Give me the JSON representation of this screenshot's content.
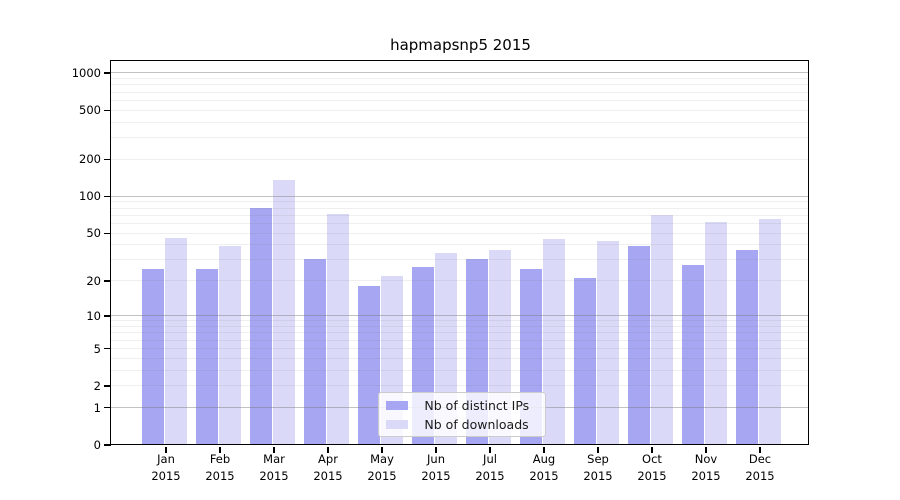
{
  "title": "hapmapsnp5 2015",
  "colors": {
    "ips_bar": "#a6a6f2",
    "downloads_bar": "#dadaf8",
    "grid_major": "rgba(120,120,120,0.45)",
    "grid_minor": "rgba(120,120,120,0.12)",
    "axis": "#000000",
    "legend_border": "#cccccc"
  },
  "legend": {
    "items": [
      {
        "label": "Nb of distinct IPs",
        "color": "#a6a6f2"
      },
      {
        "label": "Nb of downloads",
        "color": "#dadaf8"
      }
    ]
  },
  "chart_data": {
    "type": "bar",
    "title": "hapmapsnp5 2015",
    "categories": [
      "Jan",
      "Feb",
      "Mar",
      "Apr",
      "May",
      "Jun",
      "Jul",
      "Aug",
      "Sep",
      "Oct",
      "Nov",
      "Dec"
    ],
    "year_label": "2015",
    "series": [
      {
        "name": "Nb of distinct IPs",
        "values": [
          25,
          25,
          80,
          30,
          18,
          26,
          30,
          25,
          21,
          39,
          27,
          36
        ]
      },
      {
        "name": "Nb of downloads",
        "values": [
          45,
          39,
          135,
          71,
          22,
          34,
          36,
          44,
          43,
          70,
          61,
          65
        ]
      }
    ],
    "xlabel": "",
    "ylabel": "",
    "y_scale": "log10(1+x)",
    "y_ticks": [
      0,
      1,
      2,
      5,
      10,
      20,
      50,
      100,
      200,
      500,
      1000
    ],
    "ylim": [
      0,
      1250
    ],
    "grid_major_values": [
      1,
      10,
      100,
      1000
    ],
    "grid_minor_values": [
      2,
      3,
      4,
      5,
      6,
      7,
      8,
      9,
      20,
      30,
      40,
      50,
      60,
      70,
      80,
      90,
      200,
      300,
      400,
      500,
      600,
      700,
      800,
      900
    ],
    "grid": "horizontal",
    "legend_position": "lower center"
  }
}
